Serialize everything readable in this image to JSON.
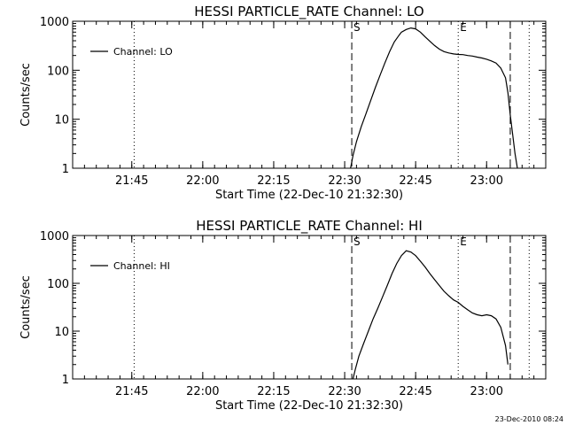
{
  "chart_data": [
    {
      "type": "line",
      "title": "HESSI PARTICLE_RATE Channel: LO",
      "xlabel": "Start Time (22-Dec-10 21:32:30)",
      "ylabel": "Counts/sec",
      "yscale": "log",
      "ylim": [
        1,
        1000
      ],
      "xlim_minutes": [
        "21:32:30",
        "23:12:30"
      ],
      "y_ticks": [
        "1",
        "10",
        "100",
        "1000"
      ],
      "x_ticks": [
        "21:45",
        "22:00",
        "22:15",
        "22:30",
        "22:45",
        "23:00"
      ],
      "legend": {
        "placement": "top-left",
        "entries": [
          "Channel: LO"
        ]
      },
      "grid": false,
      "markers": {
        "dashed": [
          "22:31:30",
          "23:05:00"
        ],
        "dotted": [
          "21:45:30",
          "22:54:00",
          "23:09:00"
        ],
        "labels": [
          {
            "text": "S",
            "x": "22:31:30"
          },
          {
            "text": "E",
            "x": "22:54:00"
          }
        ]
      },
      "series": [
        {
          "name": "Channel: LO",
          "color": "#000000",
          "x": [
            "22:31:15",
            "22:31:45",
            "22:32:30",
            "22:33:30",
            "22:34:30",
            "22:35:30",
            "22:36:30",
            "22:37:30",
            "22:38:30",
            "22:39:30",
            "22:40:30",
            "22:41:30",
            "22:42:00",
            "22:43:00",
            "22:44:00",
            "22:45:00",
            "22:46:00",
            "22:47:00",
            "22:48:00",
            "22:49:00",
            "22:50:00",
            "22:51:00",
            "22:52:00",
            "22:53:00",
            "22:54:00",
            "22:55:00",
            "22:56:00",
            "22:57:00",
            "22:58:00",
            "22:59:00",
            "23:00:00",
            "23:01:00",
            "23:02:00",
            "23:03:00",
            "23:04:00",
            "23:04:30",
            "23:05:00",
            "23:05:30",
            "23:06:00",
            "23:06:30"
          ],
          "y": [
            1,
            1.8,
            3.5,
            7,
            13,
            24,
            45,
            80,
            140,
            240,
            380,
            520,
            600,
            680,
            730,
            700,
            600,
            480,
            390,
            320,
            270,
            240,
            225,
            215,
            210,
            208,
            200,
            195,
            185,
            178,
            168,
            155,
            140,
            110,
            70,
            35,
            12,
            5,
            2,
            1
          ]
        }
      ]
    },
    {
      "type": "line",
      "title": "HESSI PARTICLE_RATE Channel: HI",
      "xlabel": "Start Time (22-Dec-10 21:32:30)",
      "ylabel": "Counts/sec",
      "yscale": "log",
      "ylim": [
        1,
        1000
      ],
      "xlim_minutes": [
        "21:32:30",
        "23:12:30"
      ],
      "y_ticks": [
        "1",
        "10",
        "100",
        "1000"
      ],
      "x_ticks": [
        "21:45",
        "22:00",
        "22:15",
        "22:30",
        "22:45",
        "23:00"
      ],
      "legend": {
        "placement": "top-left",
        "entries": [
          "Channel: HI"
        ]
      },
      "grid": false,
      "markers": {
        "dashed": [
          "22:31:30",
          "23:05:00"
        ],
        "dotted": [
          "21:45:30",
          "22:54:00",
          "23:09:00"
        ],
        "labels": [
          {
            "text": "S",
            "x": "22:31:30"
          },
          {
            "text": "E",
            "x": "22:54:00"
          }
        ]
      },
      "series": [
        {
          "name": "Channel: HI",
          "color": "#000000",
          "x": [
            "22:31:45",
            "22:32:15",
            "22:33:00",
            "22:34:00",
            "22:35:00",
            "22:36:00",
            "22:37:00",
            "22:38:00",
            "22:39:00",
            "22:40:00",
            "22:41:00",
            "22:42:00",
            "22:43:00",
            "22:44:00",
            "22:45:00",
            "22:46:00",
            "22:47:00",
            "22:48:00",
            "22:49:00",
            "22:50:00",
            "22:51:00",
            "22:52:00",
            "22:53:00",
            "22:54:00",
            "22:55:00",
            "22:56:00",
            "22:57:00",
            "22:58:00",
            "22:59:00",
            "23:00:00",
            "23:01:00",
            "23:02:00",
            "23:03:00",
            "23:04:00",
            "23:04:30"
          ],
          "y": [
            1,
            1.6,
            3,
            5.5,
            10,
            18,
            30,
            52,
            90,
            160,
            260,
            380,
            480,
            450,
            380,
            290,
            220,
            160,
            120,
            90,
            68,
            55,
            45,
            40,
            33,
            28,
            24,
            22,
            21,
            22,
            21,
            18,
            12,
            5,
            2
          ]
        }
      ]
    }
  ],
  "footer": {
    "timestamp": "23-Dec-2010 08:24"
  }
}
